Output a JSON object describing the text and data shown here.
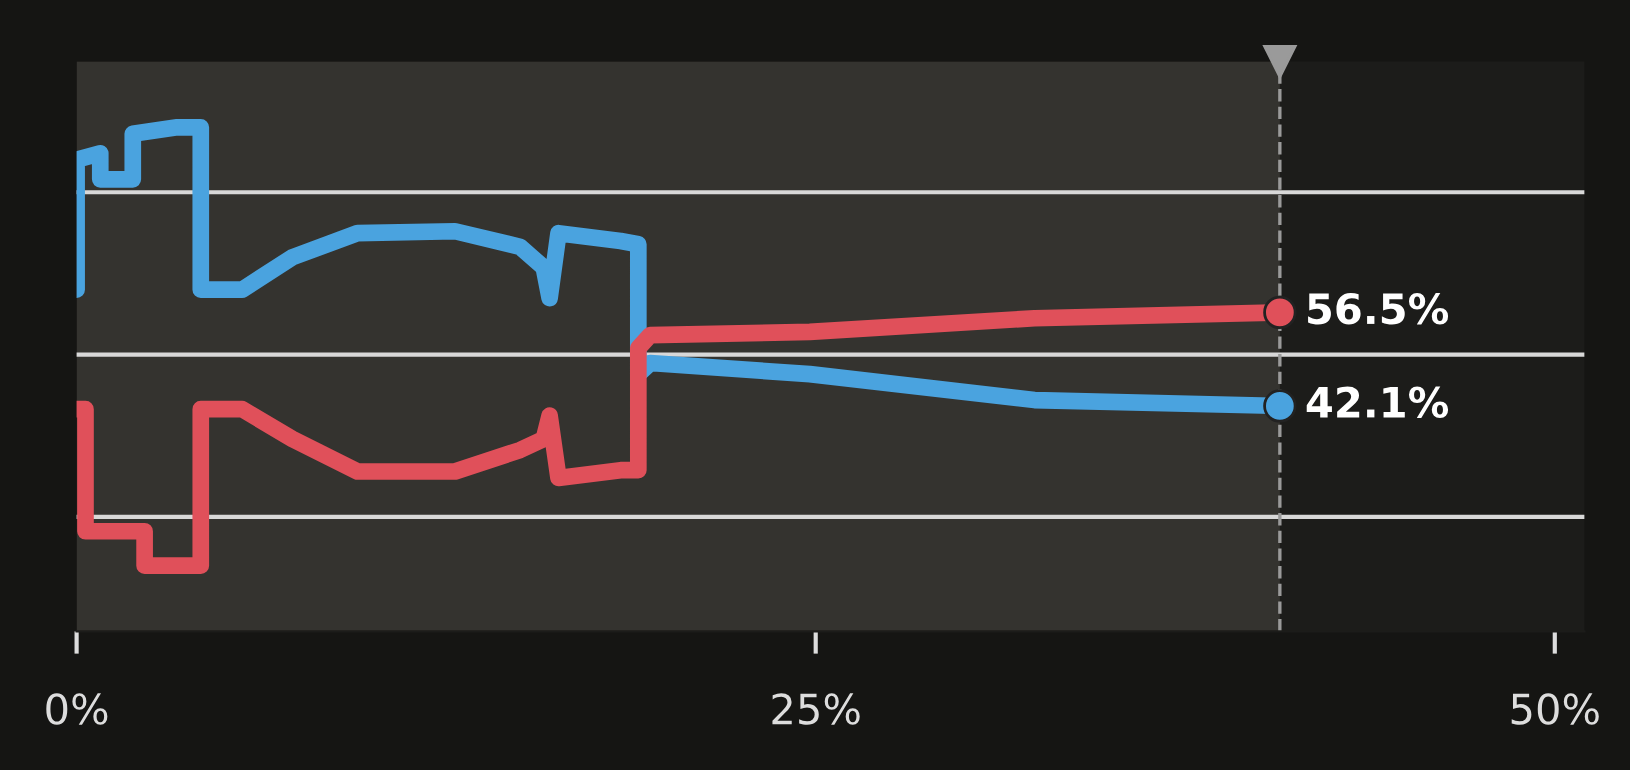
{
  "chart_data": {
    "type": "line",
    "xlim": [
      0,
      51
    ],
    "xticks": [
      {
        "value": 0,
        "label": "0%"
      },
      {
        "value": 25,
        "label": "25%"
      },
      {
        "value": 50,
        "label": "50%"
      }
    ],
    "tick_labels": "x",
    "grid": "y",
    "marker": "none",
    "line_style": "solid",
    "bands": [
      {
        "axis": "x",
        "from": 0,
        "to": 40.7,
        "color": "#34332f"
      }
    ],
    "ref_lines": [
      {
        "axis": "x",
        "value": 40.7,
        "color": "#9a9a9a",
        "line_style": "dashed"
      }
    ],
    "series": [
      {
        "color": "#4aa3df",
        "x": [
          0,
          0,
          0.8,
          0.8,
          1.9,
          1.9,
          3.4,
          4.2,
          4.2,
          5.6,
          7.3,
          9.5,
          12.8,
          15,
          15.8,
          16,
          16.3,
          18.4,
          19,
          19,
          19.4,
          24.8,
          32.4,
          40.7
        ],
        "values": [
          60,
          80,
          81,
          77,
          77,
          84,
          85,
          85,
          60,
          60,
          65,
          68.7,
          69,
          66.6,
          63.4,
          58.7,
          68.7,
          67.5,
          67,
          47,
          48.7,
          47,
          43,
          42.1
        ],
        "value_labels": [
          null,
          null,
          null,
          null,
          null,
          null,
          null,
          null,
          null,
          null,
          null,
          null,
          null,
          null,
          null,
          null,
          null,
          null,
          null,
          null,
          null,
          null,
          null,
          "42.1%"
        ]
      },
      {
        "color": "#e0505a",
        "x": [
          0,
          0.3,
          0.3,
          2.3,
          2.3,
          4.2,
          4.2,
          5.6,
          7.3,
          9.5,
          12.8,
          15,
          15.8,
          16,
          16.3,
          18.4,
          19,
          19,
          19.4,
          24.8,
          32.4,
          40.7
        ],
        "values": [
          41.6,
          41.6,
          22.8,
          22.8,
          17.5,
          17.5,
          41.6,
          41.6,
          37,
          32,
          32,
          35.3,
          37,
          40.6,
          31,
          32.2,
          32.2,
          51,
          53,
          53.5,
          55.6,
          56.5
        ],
        "value_labels": [
          null,
          null,
          null,
          null,
          null,
          null,
          null,
          null,
          null,
          null,
          null,
          null,
          null,
          null,
          null,
          null,
          null,
          null,
          null,
          null,
          null,
          "56.5%"
        ]
      }
    ]
  }
}
